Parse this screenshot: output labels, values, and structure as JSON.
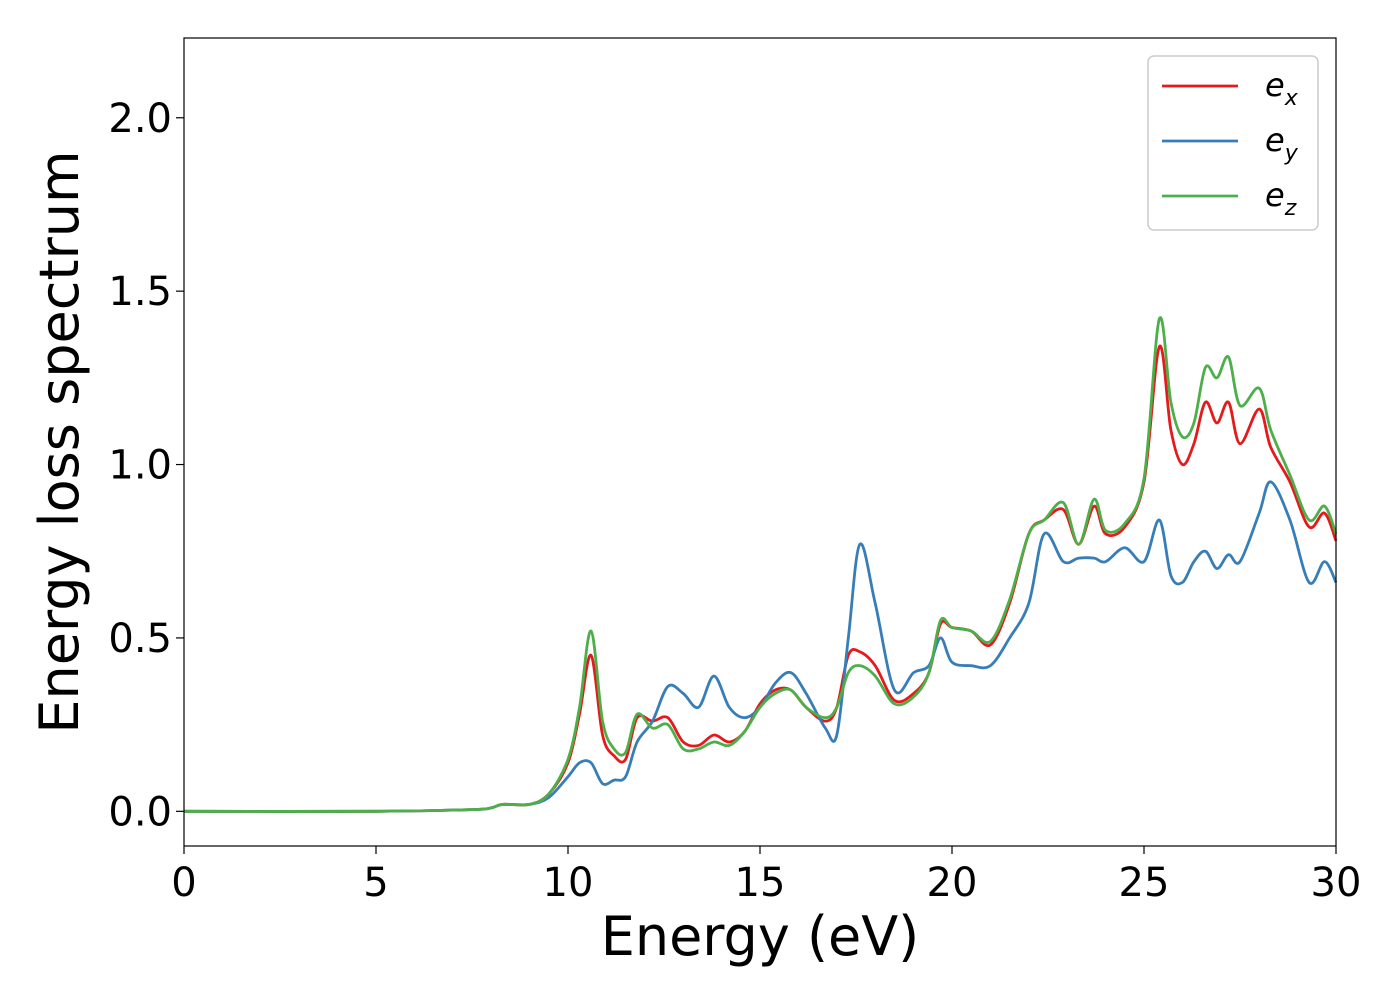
{
  "chart_data": {
    "type": "line",
    "xlabel": "Energy (eV)",
    "ylabel": "Energy loss spectrum",
    "xlim": [
      0,
      30
    ],
    "ylim": [
      -0.1,
      2.23
    ],
    "xticks": [
      "0",
      "5",
      "10",
      "15",
      "20",
      "25",
      "30"
    ],
    "yticks": [
      "0.0",
      "0.5",
      "1.0",
      "1.5",
      "2.0"
    ],
    "grid": false,
    "legend_position": "top-right",
    "series": [
      {
        "name": "e_x",
        "label_base": "e",
        "label_sub": "x",
        "color": "#e41a1c",
        "x": [
          0,
          5,
          7.5,
          8,
          8.3,
          9,
          9.5,
          10,
          10.3,
          10.6,
          10.9,
          11.2,
          11.5,
          11.8,
          12.2,
          12.6,
          13,
          13.4,
          13.8,
          14.2,
          14.6,
          15,
          15.4,
          15.8,
          16.2,
          16.7,
          17,
          17.3,
          17.6,
          18,
          18.5,
          19,
          19.4,
          19.7,
          20,
          20.5,
          21,
          21.5,
          22,
          22.4,
          22.9,
          23.3,
          23.7,
          24,
          24.5,
          25,
          25.4,
          25.7,
          26,
          26.3,
          26.6,
          26.9,
          27.2,
          27.5,
          28,
          28.3,
          28.8,
          29.3,
          29.7,
          30
        ],
        "y": [
          0,
          0,
          0.005,
          0.01,
          0.02,
          0.02,
          0.05,
          0.14,
          0.28,
          0.45,
          0.22,
          0.16,
          0.15,
          0.27,
          0.26,
          0.27,
          0.2,
          0.19,
          0.22,
          0.2,
          0.23,
          0.31,
          0.35,
          0.35,
          0.3,
          0.26,
          0.3,
          0.45,
          0.46,
          0.42,
          0.32,
          0.34,
          0.4,
          0.54,
          0.53,
          0.52,
          0.48,
          0.6,
          0.8,
          0.84,
          0.87,
          0.77,
          0.88,
          0.8,
          0.82,
          0.95,
          1.34,
          1.1,
          1.0,
          1.06,
          1.18,
          1.12,
          1.18,
          1.06,
          1.16,
          1.05,
          0.95,
          0.82,
          0.86,
          0.78
        ]
      },
      {
        "name": "e_y",
        "label_base": "e",
        "label_sub": "y",
        "color": "#377eb8",
        "x": [
          0,
          5,
          7.5,
          8,
          8.3,
          9,
          9.5,
          10,
          10.3,
          10.6,
          10.9,
          11.2,
          11.5,
          11.8,
          12.2,
          12.6,
          13,
          13.4,
          13.8,
          14.2,
          14.6,
          15,
          15.4,
          15.8,
          16.2,
          16.7,
          17,
          17.3,
          17.6,
          18,
          18.5,
          19,
          19.4,
          19.7,
          20,
          20.5,
          21,
          21.5,
          22,
          22.4,
          22.9,
          23.3,
          23.7,
          24,
          24.5,
          25,
          25.4,
          25.7,
          26,
          26.3,
          26.6,
          26.9,
          27.2,
          27.5,
          28,
          28.3,
          28.8,
          29.3,
          29.7,
          30
        ],
        "y": [
          0,
          0,
          0.005,
          0.01,
          0.02,
          0.02,
          0.04,
          0.1,
          0.14,
          0.14,
          0.08,
          0.09,
          0.1,
          0.2,
          0.26,
          0.36,
          0.34,
          0.3,
          0.39,
          0.3,
          0.27,
          0.3,
          0.37,
          0.4,
          0.34,
          0.24,
          0.22,
          0.5,
          0.77,
          0.6,
          0.35,
          0.4,
          0.42,
          0.5,
          0.43,
          0.42,
          0.42,
          0.5,
          0.6,
          0.8,
          0.72,
          0.73,
          0.73,
          0.72,
          0.76,
          0.72,
          0.84,
          0.68,
          0.66,
          0.72,
          0.75,
          0.7,
          0.74,
          0.72,
          0.86,
          0.95,
          0.84,
          0.66,
          0.72,
          0.66
        ]
      },
      {
        "name": "e_z",
        "label_base": "e",
        "label_sub": "z",
        "color": "#4daf4a",
        "x": [
          0,
          5,
          7.5,
          8,
          8.3,
          9,
          9.5,
          10,
          10.3,
          10.6,
          10.9,
          11.2,
          11.5,
          11.8,
          12.2,
          12.6,
          13,
          13.4,
          13.8,
          14.2,
          14.6,
          15,
          15.4,
          15.8,
          16.2,
          16.7,
          17,
          17.3,
          17.6,
          18,
          18.5,
          19,
          19.4,
          19.7,
          20,
          20.5,
          21,
          21.5,
          22,
          22.4,
          22.9,
          23.3,
          23.7,
          24,
          24.5,
          25,
          25.4,
          25.7,
          26,
          26.3,
          26.6,
          26.9,
          27.2,
          27.5,
          28,
          28.3,
          28.8,
          29.3,
          29.7,
          30
        ],
        "y": [
          0,
          0,
          0.005,
          0.01,
          0.02,
          0.02,
          0.05,
          0.15,
          0.3,
          0.52,
          0.26,
          0.18,
          0.17,
          0.28,
          0.24,
          0.25,
          0.18,
          0.18,
          0.2,
          0.19,
          0.23,
          0.3,
          0.34,
          0.35,
          0.3,
          0.27,
          0.3,
          0.4,
          0.42,
          0.39,
          0.31,
          0.33,
          0.4,
          0.55,
          0.53,
          0.52,
          0.49,
          0.61,
          0.8,
          0.84,
          0.89,
          0.77,
          0.9,
          0.81,
          0.83,
          0.96,
          1.42,
          1.18,
          1.08,
          1.12,
          1.28,
          1.25,
          1.31,
          1.17,
          1.22,
          1.1,
          0.97,
          0.84,
          0.88,
          0.8
        ]
      }
    ]
  }
}
